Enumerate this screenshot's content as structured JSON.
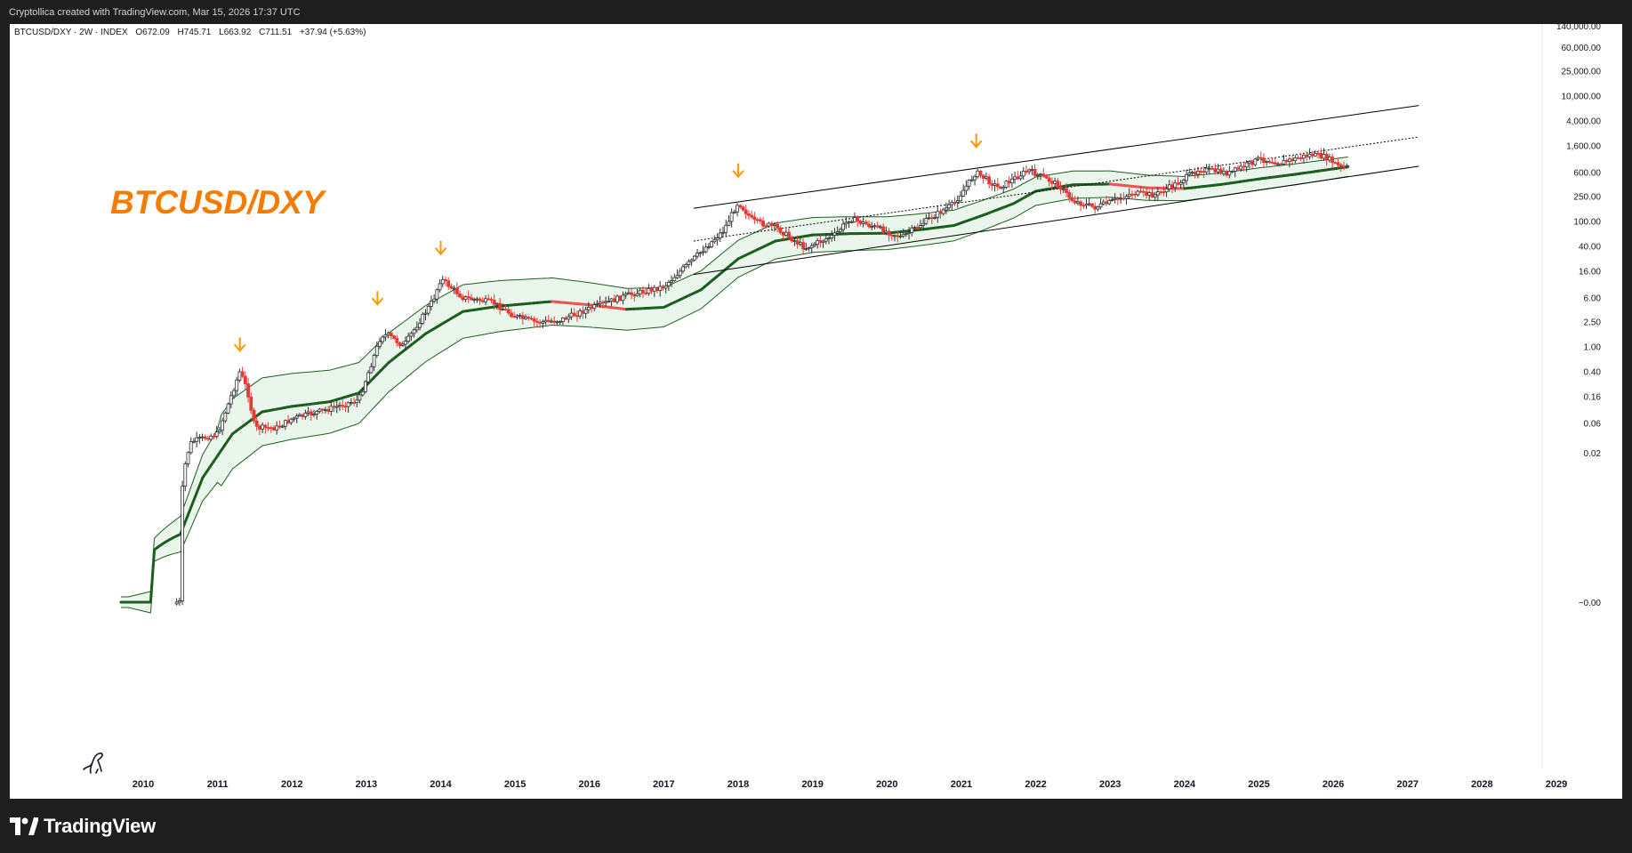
{
  "header": {
    "credit": "Cryptollica created with TradingView.com, Mar 15, 2026 17:37 UTC"
  },
  "legend": {
    "symbol": "BTCUSD/DXY · 2W · INDEX",
    "ohlc": {
      "O": "672.09",
      "H": "745.71",
      "L": "663.92",
      "C": "711.51",
      "change": "+37.94 (+5.63%)"
    }
  },
  "annotation": {
    "text": "BTCUSD/DXY",
    "color": "#f57c00"
  },
  "footer": {
    "brand": "TradingView"
  },
  "colors": {
    "candle_up": "#2e2e2e",
    "candle_down": "#e53935",
    "band_line": "#1b5e20",
    "band_fill": "#e8f5e9",
    "band_bear": "#ef5350",
    "arrow": "#ff9800",
    "channel": "#000000"
  },
  "chart_data": {
    "type": "candlestick",
    "title": "BTCUSD/DXY",
    "timeframe": "2W",
    "yscale": "log",
    "ylim": [
      0,
      140000
    ],
    "y_ticks": [
      "140,000.00",
      "60,000.00",
      "25,000.00",
      "10,000.00",
      "4,000.00",
      "1,600.00",
      "600.00",
      "250.00",
      "100.00",
      "40.00",
      "16.00",
      "6.00",
      "2.50",
      "1.00",
      "0.40",
      "0.16",
      "0.06",
      "0.02",
      "−0.00"
    ],
    "x_ticks": [
      "2010",
      "2011",
      "2012",
      "2013",
      "2014",
      "2015",
      "2016",
      "2017",
      "2018",
      "2019",
      "2020",
      "2021",
      "2022",
      "2023",
      "2024",
      "2025",
      "2026",
      "2027",
      "2028",
      "2029"
    ],
    "last_bar": {
      "open": 672.09,
      "high": 745.71,
      "low": 663.92,
      "close": 711.51,
      "change": 37.94,
      "change_pct": 5.63
    },
    "series": [
      {
        "kind": "price_path",
        "points": [
          [
            2009.7,
            0
          ],
          [
            2010.5,
            0
          ],
          [
            2010.65,
            0.03
          ],
          [
            2011.0,
            0.04
          ],
          [
            2011.3,
            0.4
          ],
          [
            2011.4,
            0.2
          ],
          [
            2011.5,
            0.05
          ],
          [
            2011.8,
            0.05
          ],
          [
            2012.0,
            0.07
          ],
          [
            2012.5,
            0.1
          ],
          [
            2012.9,
            0.14
          ],
          [
            2013.2,
            1.5
          ],
          [
            2013.3,
            1.5
          ],
          [
            2013.5,
            1.0
          ],
          [
            2013.9,
            5.5
          ],
          [
            2014.0,
            12
          ],
          [
            2014.3,
            6
          ],
          [
            2014.7,
            5
          ],
          [
            2015.0,
            3
          ],
          [
            2015.3,
            2.4
          ],
          [
            2015.6,
            2.6
          ],
          [
            2016.0,
            4
          ],
          [
            2016.5,
            6.5
          ],
          [
            2017.0,
            9
          ],
          [
            2017.4,
            25
          ],
          [
            2017.8,
            70
          ],
          [
            2018.0,
            200
          ],
          [
            2018.2,
            100
          ],
          [
            2018.5,
            80
          ],
          [
            2018.9,
            37
          ],
          [
            2019.3,
            60
          ],
          [
            2019.5,
            110
          ],
          [
            2019.9,
            75
          ],
          [
            2020.2,
            55
          ],
          [
            2020.6,
            115
          ],
          [
            2020.9,
            190
          ],
          [
            2021.2,
            600
          ],
          [
            2021.5,
            340
          ],
          [
            2021.9,
            650
          ],
          [
            2022.3,
            380
          ],
          [
            2022.5,
            210
          ],
          [
            2022.8,
            165
          ],
          [
            2023.0,
            200
          ],
          [
            2023.3,
            280
          ],
          [
            2023.6,
            260
          ],
          [
            2023.9,
            400
          ],
          [
            2024.2,
            680
          ],
          [
            2024.6,
            580
          ],
          [
            2025.0,
            980
          ],
          [
            2025.3,
            860
          ],
          [
            2025.7,
            1150
          ],
          [
            2025.9,
            1050
          ],
          [
            2026.1,
            720
          ],
          [
            2026.2,
            711.51
          ]
        ]
      },
      {
        "kind": "band_middle",
        "points": [
          [
            2009.7,
            0
          ],
          [
            2010.5,
            0.001
          ],
          [
            2010.8,
            0.008
          ],
          [
            2011.2,
            0.04
          ],
          [
            2011.6,
            0.09
          ],
          [
            2012.0,
            0.11
          ],
          [
            2012.5,
            0.13
          ],
          [
            2012.9,
            0.18
          ],
          [
            2013.3,
            0.55
          ],
          [
            2013.8,
            1.6
          ],
          [
            2014.3,
            3.6
          ],
          [
            2014.8,
            4.4
          ],
          [
            2015.5,
            5.2
          ],
          [
            2016.0,
            4.6
          ],
          [
            2016.5,
            3.9
          ],
          [
            2017.0,
            4.2
          ],
          [
            2017.5,
            8
          ],
          [
            2018.0,
            25
          ],
          [
            2018.5,
            48
          ],
          [
            2019.0,
            60
          ],
          [
            2019.5,
            63
          ],
          [
            2020.0,
            64
          ],
          [
            2020.5,
            74
          ],
          [
            2020.9,
            85
          ],
          [
            2021.3,
            125
          ],
          [
            2021.7,
            190
          ],
          [
            2022.0,
            300
          ],
          [
            2022.5,
            380
          ],
          [
            2023.0,
            390
          ],
          [
            2023.5,
            340
          ],
          [
            2024.0,
            330
          ],
          [
            2024.5,
            385
          ],
          [
            2025.0,
            470
          ],
          [
            2025.5,
            560
          ],
          [
            2026.0,
            680
          ],
          [
            2026.2,
            740
          ]
        ]
      }
    ],
    "tops_marked": [
      "2011",
      "2013",
      "2014",
      "2018",
      "2021"
    ],
    "channel": {
      "description": "ascending channel with dotted midline from 2017 to 2027"
    }
  }
}
